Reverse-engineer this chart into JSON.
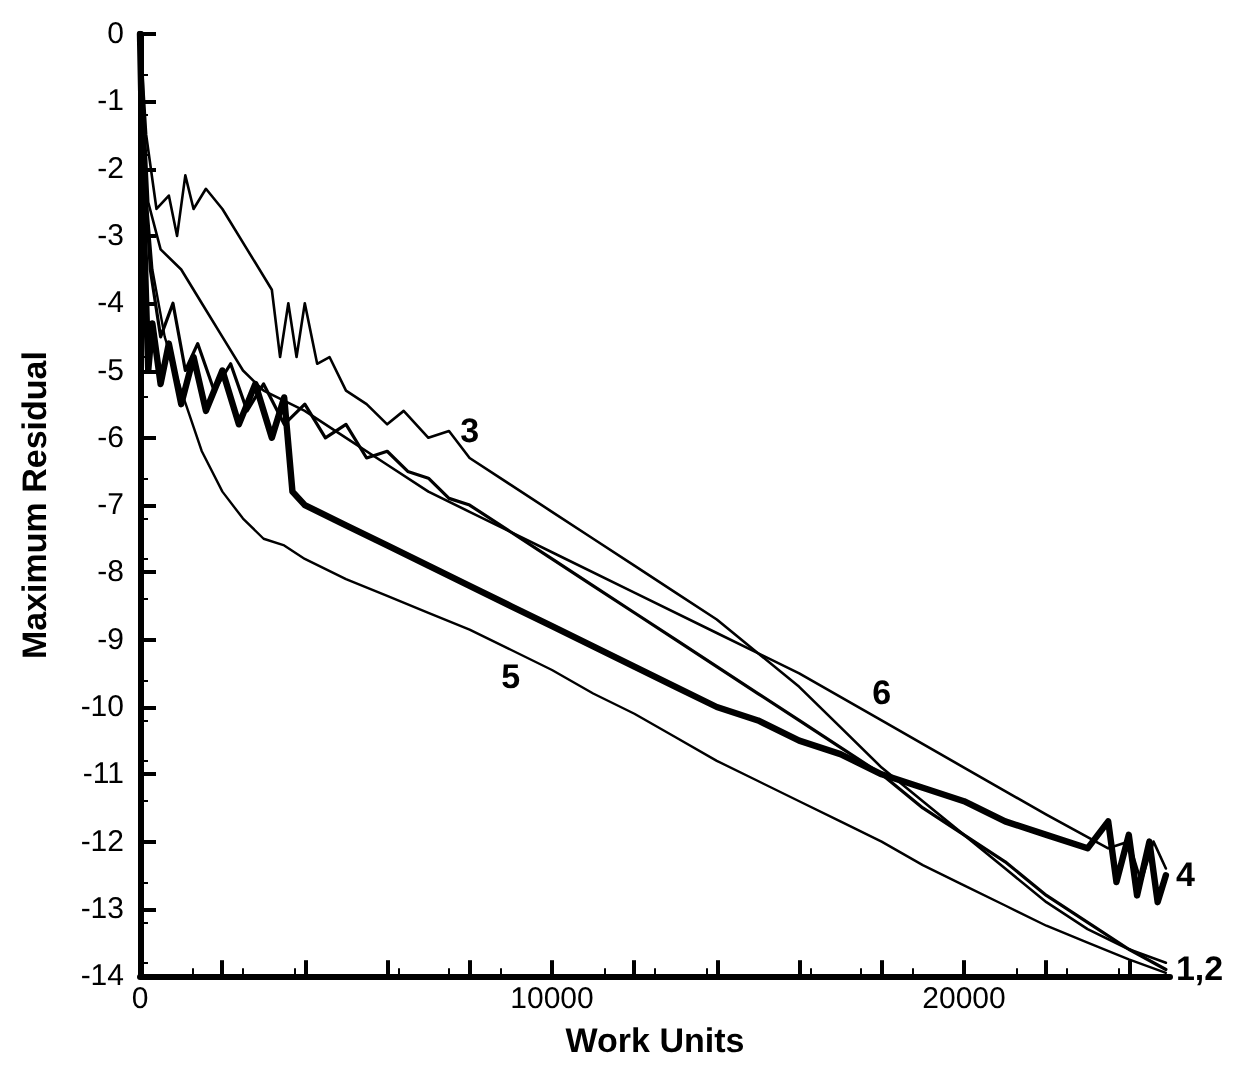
{
  "chart_data": {
    "type": "line",
    "xlabel": "Work Units",
    "ylabel": "Maximum Residual",
    "xlim": [
      0,
      25000
    ],
    "ylim": [
      -14,
      0
    ],
    "xticks": [
      0,
      {
        "value": 2000,
        "label": null
      },
      {
        "value": 4000,
        "label": null
      },
      {
        "value": 6000,
        "label": null
      },
      {
        "value": 8000,
        "label": null
      },
      10000,
      {
        "value": 12000,
        "label": null
      },
      {
        "value": 14000,
        "label": null
      },
      {
        "value": 16000,
        "label": null
      },
      {
        "value": 18000,
        "label": null
      },
      20000,
      {
        "value": 22000,
        "label": null
      },
      {
        "value": 24000,
        "label": null
      }
    ],
    "yticks": [
      -14,
      -13,
      -12,
      -11,
      -10,
      -9,
      -8,
      -7,
      -6,
      -5,
      -4,
      -3,
      -2,
      -1,
      0
    ],
    "grid": false,
    "legend": false,
    "marker": "none",
    "line_style": "solid",
    "series": [
      {
        "name": "1,2",
        "color": "#000000",
        "x": [
          0,
          100,
          250,
          500,
          800,
          1100,
          1400,
          1800,
          2200,
          2600,
          3000,
          3500,
          4000,
          4500,
          5000,
          5500,
          6000,
          6500,
          7000,
          7500,
          8000,
          9000,
          10000,
          11000,
          12000,
          13000,
          14000,
          15000,
          16000,
          17000,
          18000,
          19000,
          20000,
          21000,
          22000,
          23000,
          24000,
          24900
        ],
        "values": [
          0,
          -2,
          -3.5,
          -4.5,
          -4.0,
          -5.0,
          -4.6,
          -5.3,
          -4.9,
          -5.6,
          -5.2,
          -5.8,
          -5.5,
          -6.0,
          -5.8,
          -6.3,
          -6.2,
          -6.5,
          -6.6,
          -6.9,
          -7.0,
          -7.4,
          -7.8,
          -8.2,
          -8.6,
          -9.0,
          -9.4,
          -9.8,
          -10.2,
          -10.6,
          -11.0,
          -11.5,
          -11.9,
          -12.3,
          -12.8,
          -13.2,
          -13.6,
          -13.9
        ]
      },
      {
        "name": "3",
        "color": "#000000",
        "x": [
          0,
          150,
          400,
          700,
          900,
          1100,
          1300,
          1600,
          2000,
          2600,
          3200,
          3400,
          3600,
          3800,
          4000,
          4300,
          4600,
          5000,
          5500,
          6000,
          6400,
          7000,
          7500,
          8000,
          9000,
          10000,
          11000,
          12000,
          13000,
          14000,
          15000,
          16000,
          17000,
          18000,
          19000,
          20000,
          21000,
          22000,
          23000,
          24000,
          24900
        ],
        "values": [
          0,
          -1.5,
          -2.6,
          -2.4,
          -3.0,
          -2.1,
          -2.6,
          -2.3,
          -2.6,
          -3.2,
          -3.8,
          -4.8,
          -4.0,
          -4.8,
          -4.0,
          -4.9,
          -4.8,
          -5.3,
          -5.5,
          -5.8,
          -5.6,
          -6.0,
          -5.9,
          -6.3,
          -6.7,
          -7.1,
          -7.5,
          -7.9,
          -8.3,
          -8.7,
          -9.2,
          -9.7,
          -10.3,
          -10.9,
          -11.4,
          -11.9,
          -12.4,
          -12.9,
          -13.3,
          -13.6,
          -13.8
        ]
      },
      {
        "name": "4",
        "color": "#000000",
        "x": [
          0,
          100,
          200,
          300,
          500,
          700,
          1000,
          1300,
          1600,
          2000,
          2400,
          2800,
          3200,
          3500,
          3700,
          4000,
          5000,
          6000,
          7000,
          8000,
          9000,
          10000,
          11000,
          12000,
          13000,
          14000,
          15000,
          16000,
          17000,
          18000,
          19000,
          20000,
          21000,
          22000,
          23000,
          23500,
          23700,
          24000,
          24200,
          24500,
          24700,
          24900
        ],
        "values": [
          0,
          -3,
          -5,
          -4.3,
          -5.2,
          -4.6,
          -5.5,
          -4.8,
          -5.6,
          -5.0,
          -5.8,
          -5.2,
          -6.0,
          -5.4,
          -6.8,
          -7.0,
          -7.3,
          -7.6,
          -7.9,
          -8.2,
          -8.5,
          -8.8,
          -9.1,
          -9.4,
          -9.7,
          -10.0,
          -10.2,
          -10.5,
          -10.7,
          -11.0,
          -11.2,
          -11.4,
          -11.7,
          -11.9,
          -12.1,
          -11.7,
          -12.6,
          -11.9,
          -12.8,
          -12.0,
          -12.9,
          -12.5
        ]
      },
      {
        "name": "5",
        "color": "#000000",
        "x": [
          0,
          100,
          300,
          600,
          1000,
          1500,
          2000,
          2500,
          3000,
          3500,
          4000,
          5000,
          6000,
          7000,
          8000,
          9000,
          10000,
          11000,
          12000,
          13000,
          14000,
          15000,
          16000,
          17000,
          18000,
          19000,
          20000,
          21000,
          22000,
          23000,
          24000,
          24900
        ],
        "values": [
          0,
          -2,
          -3.5,
          -4.5,
          -5.3,
          -6.2,
          -6.8,
          -7.2,
          -7.5,
          -7.6,
          -7.8,
          -8.1,
          -8.35,
          -8.6,
          -8.85,
          -9.15,
          -9.45,
          -9.8,
          -10.1,
          -10.45,
          -10.8,
          -11.1,
          -11.4,
          -11.7,
          -12.0,
          -12.35,
          -12.65,
          -12.95,
          -13.25,
          -13.5,
          -13.75,
          -13.95
        ]
      },
      {
        "name": "6",
        "color": "#000000",
        "x": [
          0,
          200,
          500,
          1000,
          1500,
          2000,
          2500,
          3000,
          4000,
          5000,
          6000,
          7000,
          8000,
          10000,
          12000,
          14000,
          16000,
          18000,
          20000,
          22000,
          23500,
          24000,
          24300,
          24600,
          24900
        ],
        "values": [
          0,
          -2.5,
          -3.2,
          -3.5,
          -4.0,
          -4.5,
          -5.0,
          -5.3,
          -5.6,
          -6.0,
          -6.4,
          -6.8,
          -7.1,
          -7.7,
          -8.3,
          -8.9,
          -9.5,
          -10.2,
          -10.9,
          -11.6,
          -12.1,
          -12.0,
          -12.6,
          -12.0,
          -12.4
        ]
      }
    ]
  }
}
